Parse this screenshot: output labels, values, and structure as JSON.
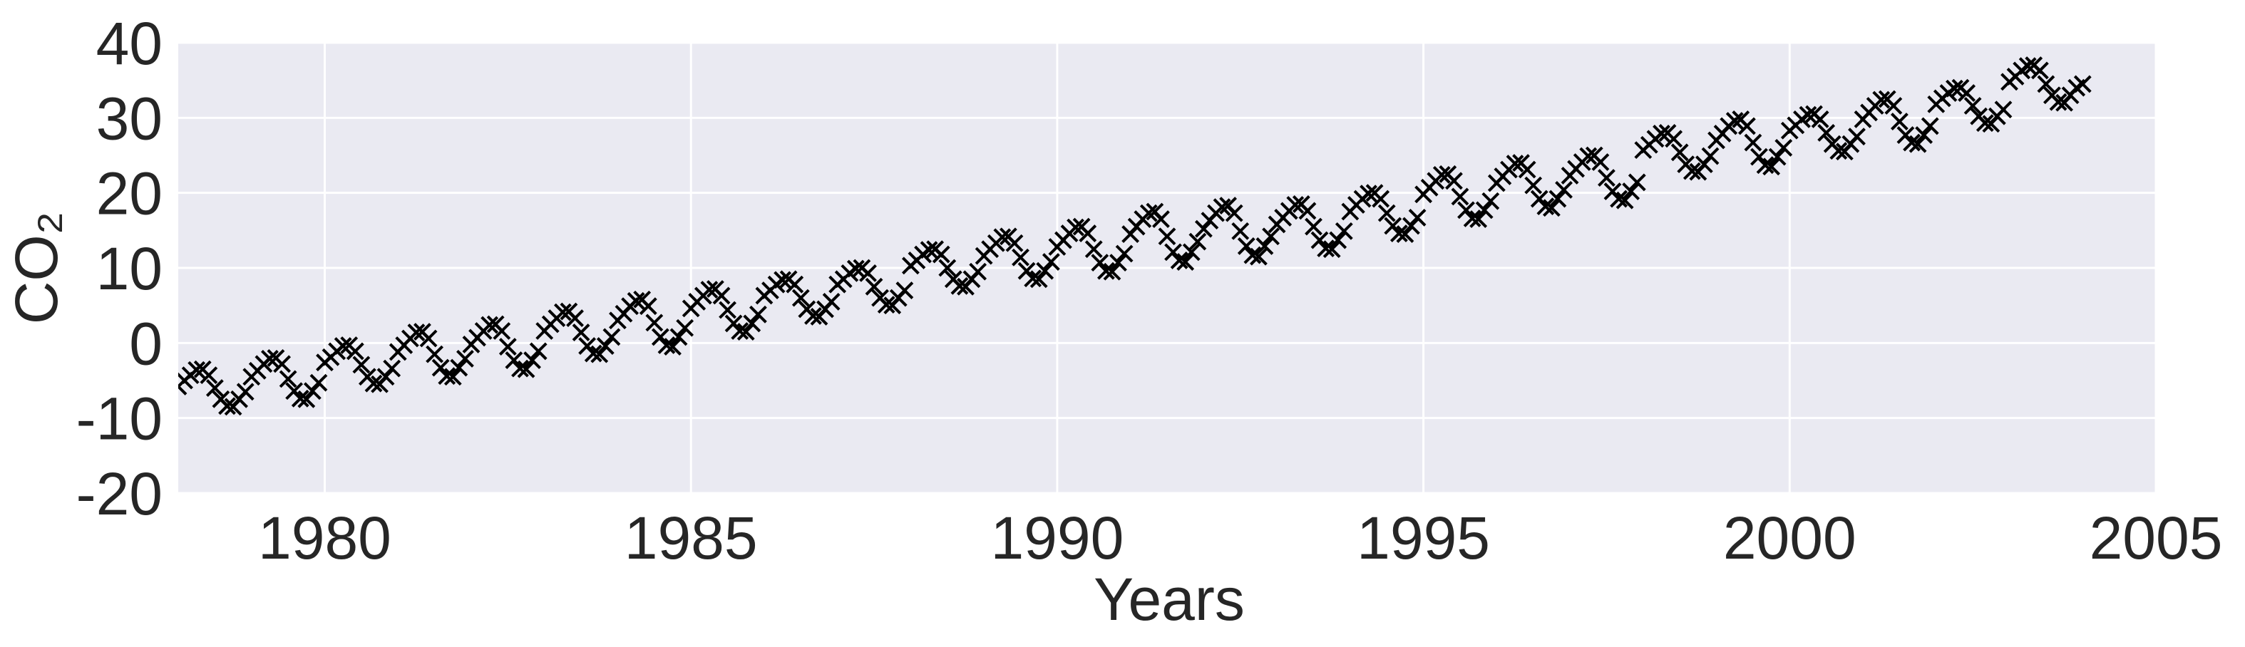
{
  "chart_data": {
    "type": "scatter",
    "xlabel": "Years",
    "ylabel": "CO₂",
    "xlim": [
      1978,
      2005
    ],
    "ylim": [
      -20,
      40
    ],
    "xticks": [
      1980,
      1985,
      1990,
      1995,
      2000,
      2005
    ],
    "yticks": [
      -20,
      -10,
      0,
      10,
      20,
      30,
      40
    ],
    "grid": true,
    "color": "#000000",
    "marker": "x",
    "x": [
      1978.0,
      1978.083,
      1978.167,
      1978.25,
      1978.333,
      1978.417,
      1978.5,
      1978.583,
      1978.667,
      1978.75,
      1978.833,
      1978.917,
      1979.0,
      1979.083,
      1979.167,
      1979.25,
      1979.333,
      1979.417,
      1979.5,
      1979.583,
      1979.667,
      1979.75,
      1979.833,
      1979.917,
      1980.0,
      1980.083,
      1980.167,
      1980.25,
      1980.333,
      1980.417,
      1980.5,
      1980.583,
      1980.667,
      1980.75,
      1980.833,
      1980.917,
      1981.0,
      1981.083,
      1981.167,
      1981.25,
      1981.333,
      1981.417,
      1981.5,
      1981.583,
      1981.667,
      1981.75,
      1981.833,
      1981.917,
      1982.0,
      1982.083,
      1982.167,
      1982.25,
      1982.333,
      1982.417,
      1982.5,
      1982.583,
      1982.667,
      1982.75,
      1982.833,
      1982.917,
      1983.0,
      1983.083,
      1983.167,
      1983.25,
      1983.333,
      1983.417,
      1983.5,
      1983.583,
      1983.667,
      1983.75,
      1983.833,
      1983.917,
      1984.0,
      1984.083,
      1984.167,
      1984.25,
      1984.333,
      1984.417,
      1984.5,
      1984.583,
      1984.667,
      1984.75,
      1984.833,
      1984.917,
      1985.0,
      1985.083,
      1985.167,
      1985.25,
      1985.333,
      1985.417,
      1985.5,
      1985.583,
      1985.667,
      1985.75,
      1985.833,
      1985.917,
      1986.0,
      1986.083,
      1986.167,
      1986.25,
      1986.333,
      1986.417,
      1986.5,
      1986.583,
      1986.667,
      1986.75,
      1986.833,
      1986.917,
      1987.0,
      1987.083,
      1987.167,
      1987.25,
      1987.333,
      1987.417,
      1987.5,
      1987.583,
      1987.667,
      1987.75,
      1987.833,
      1987.917,
      1988.0,
      1988.083,
      1988.167,
      1988.25,
      1988.333,
      1988.417,
      1988.5,
      1988.583,
      1988.667,
      1988.75,
      1988.833,
      1988.917,
      1989.0,
      1989.083,
      1989.167,
      1989.25,
      1989.333,
      1989.417,
      1989.5,
      1989.583,
      1989.667,
      1989.75,
      1989.833,
      1989.917,
      1990.0,
      1990.083,
      1990.167,
      1990.25,
      1990.333,
      1990.417,
      1990.5,
      1990.583,
      1990.667,
      1990.75,
      1990.833,
      1990.917,
      1991.0,
      1991.083,
      1991.167,
      1991.25,
      1991.333,
      1991.417,
      1991.5,
      1991.583,
      1991.667,
      1991.75,
      1991.833,
      1991.917,
      1992.0,
      1992.083,
      1992.167,
      1992.25,
      1992.333,
      1992.417,
      1992.5,
      1992.583,
      1992.667,
      1992.75,
      1992.833,
      1992.917,
      1993.0,
      1993.083,
      1993.167,
      1993.25,
      1993.333,
      1993.417,
      1993.5,
      1993.583,
      1993.667,
      1993.75,
      1993.833,
      1993.917,
      1994.0,
      1994.083,
      1994.167,
      1994.25,
      1994.333,
      1994.417,
      1994.5,
      1994.583,
      1994.667,
      1994.75,
      1994.833,
      1994.917,
      1995.0,
      1995.083,
      1995.167,
      1995.25,
      1995.333,
      1995.417,
      1995.5,
      1995.583,
      1995.667,
      1995.75,
      1995.833,
      1995.917,
      1996.0,
      1996.083,
      1996.167,
      1996.25,
      1996.333,
      1996.417,
      1996.5,
      1996.583,
      1996.667,
      1996.75,
      1996.833,
      1996.917,
      1997.0,
      1997.083,
      1997.167,
      1997.25,
      1997.333,
      1997.417,
      1997.5,
      1997.583,
      1997.667,
      1997.75,
      1997.833,
      1997.917,
      1998.0,
      1998.083,
      1998.167,
      1998.25,
      1998.333,
      1998.417,
      1998.5,
      1998.583,
      1998.667,
      1998.75,
      1998.833,
      1998.917,
      1999.0,
      1999.083,
      1999.167,
      1999.25,
      1999.333,
      1999.417,
      1999.5,
      1999.583,
      1999.667,
      1999.75,
      1999.833,
      1999.917,
      2000.0,
      2000.083,
      2000.167,
      2000.25,
      2000.333,
      2000.417,
      2000.5,
      2000.583,
      2000.667,
      2000.75,
      2000.833,
      2000.917,
      2001.0,
      2001.083,
      2001.167,
      2001.25,
      2001.333,
      2001.417,
      2001.5,
      2001.583,
      2001.667,
      2001.75,
      2001.833,
      2001.917,
      2002.0,
      2002.083,
      2002.167,
      2002.25,
      2002.333,
      2002.417,
      2002.5,
      2002.583,
      2002.667,
      2002.75,
      2002.833,
      2002.917,
      2003.0,
      2003.083,
      2003.167,
      2003.25,
      2003.333,
      2003.417,
      2003.5,
      2003.583,
      2003.667,
      2003.75,
      2003.833,
      2003.917,
      2004.0
    ],
    "values": [
      -5.8,
      -5.0,
      -4.3,
      -3.6,
      -3.5,
      -4.3,
      -6.0,
      -7.5,
      -8.4,
      -8.5,
      -7.5,
      -6.5,
      -4.5,
      -3.7,
      -2.8,
      -2.1,
      -2.0,
      -2.8,
      -4.8,
      -6.4,
      -7.4,
      -7.5,
      -6.4,
      -5.3,
      -2.6,
      -1.9,
      -1.1,
      -0.4,
      -0.3,
      -1.1,
      -2.9,
      -4.5,
      -5.4,
      -5.5,
      -4.5,
      -3.4,
      -1.2,
      -0.3,
      0.6,
      1.4,
      1.5,
      0.6,
      -1.5,
      -3.3,
      -4.4,
      -4.5,
      -3.3,
      -2.1,
      -0.2,
      0.7,
      1.6,
      2.4,
      2.5,
      1.6,
      -0.5,
      -2.3,
      -3.4,
      -3.5,
      -2.3,
      -1.1,
      1.6,
      2.5,
      3.3,
      4.1,
      4.2,
      3.3,
      1.4,
      -0.4,
      -1.4,
      -1.5,
      -0.4,
      0.8,
      3.0,
      3.9,
      4.9,
      5.6,
      5.8,
      4.9,
      2.7,
      0.8,
      -0.3,
      -0.5,
      0.8,
      2.0,
      4.6,
      5.5,
      6.3,
      7.1,
      7.2,
      6.3,
      4.4,
      2.6,
      1.6,
      1.5,
      2.6,
      3.8,
      6.3,
      7.0,
      7.8,
      8.4,
      8.5,
      7.8,
      6.0,
      4.5,
      3.6,
      3.5,
      4.5,
      5.5,
      7.8,
      8.5,
      9.3,
      9.9,
      10.0,
      9.3,
      7.5,
      6.0,
      5.1,
      5.0,
      6.0,
      7.0,
      10.3,
      11.0,
      11.8,
      12.4,
      12.5,
      11.8,
      10.0,
      8.5,
      7.6,
      7.5,
      8.5,
      9.5,
      11.6,
      12.5,
      13.3,
      14.1,
      14.2,
      13.3,
      11.4,
      9.6,
      8.6,
      8.5,
      9.6,
      10.8,
      12.8,
      13.7,
      14.6,
      15.4,
      15.5,
      14.6,
      12.5,
      10.7,
      9.6,
      9.5,
      10.7,
      11.9,
      14.5,
      15.5,
      16.5,
      17.3,
      17.5,
      16.5,
      14.2,
      12.1,
      11.0,
      10.8,
      12.1,
      13.5,
      15.2,
      16.3,
      17.3,
      18.1,
      18.3,
      17.3,
      14.9,
      12.9,
      11.7,
      11.5,
      12.9,
      14.2,
      15.8,
      16.7,
      17.6,
      18.4,
      18.5,
      17.6,
      15.5,
      13.7,
      12.6,
      12.5,
      13.7,
      14.9,
      17.5,
      18.4,
      19.2,
      19.9,
      20.0,
      19.2,
      17.3,
      15.6,
      14.6,
      14.5,
      15.6,
      16.7,
      19.8,
      20.7,
      21.6,
      22.4,
      22.5,
      21.6,
      19.5,
      17.7,
      16.6,
      16.5,
      17.7,
      18.9,
      21.3,
      22.2,
      23.1,
      23.9,
      24.0,
      23.1,
      21.0,
      19.2,
      18.2,
      18.0,
      19.2,
      20.4,
      22.3,
      23.2,
      24.1,
      24.9,
      25.0,
      24.1,
      22.0,
      20.2,
      19.2,
      19.0,
      20.2,
      21.4,
      25.7,
      26.4,
      27.2,
      27.9,
      28.0,
      27.2,
      25.4,
      23.8,
      22.9,
      22.8,
      23.8,
      24.9,
      27.0,
      27.9,
      28.9,
      29.6,
      29.8,
      28.9,
      26.7,
      24.8,
      23.7,
      23.5,
      24.8,
      26.0,
      28.3,
      29.0,
      29.8,
      30.4,
      30.5,
      29.8,
      28.0,
      26.5,
      25.6,
      25.5,
      26.5,
      27.5,
      29.8,
      30.7,
      31.6,
      32.4,
      32.5,
      31.6,
      29.5,
      27.7,
      26.7,
      26.5,
      27.7,
      28.9,
      31.8,
      32.6,
      33.3,
      33.9,
      34.0,
      33.3,
      31.6,
      30.2,
      29.3,
      29.2,
      30.2,
      31.1,
      34.8,
      35.5,
      36.3,
      36.9,
      37.0,
      36.3,
      34.5,
      33.0,
      32.1,
      32.0,
      33.0,
      34.0,
      34.5
    ]
  }
}
